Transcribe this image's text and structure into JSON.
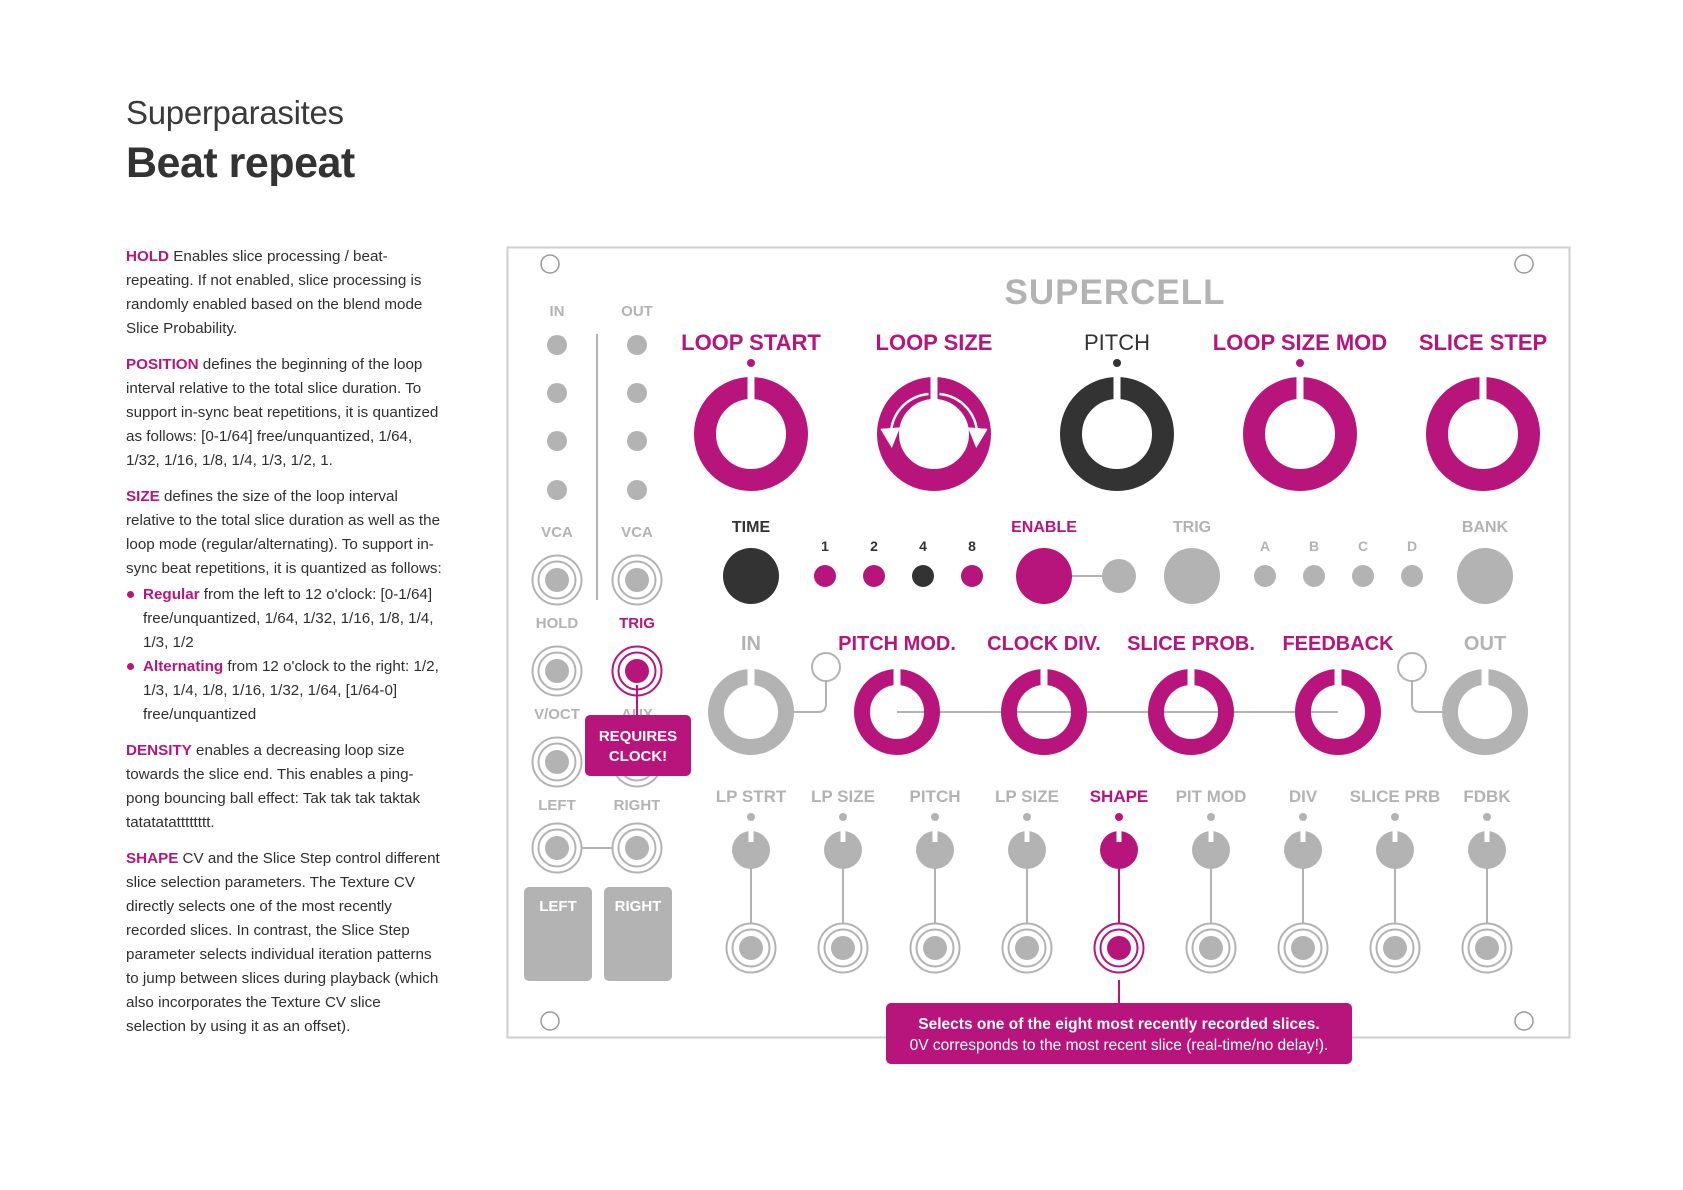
{
  "header": {
    "brand": "Superparasites",
    "title": "Beat repeat"
  },
  "description": {
    "hold": {
      "kw": "HOLD",
      "text": " Enables slice processing / beat-repeating. If not enabled, slice processing is randomly enabled based on the blend mode Slice Probability."
    },
    "position": {
      "kw": "POSITION",
      "text": " defines the beginning of the loop interval relative to the total slice duration. To support in-sync beat repetitions, it is quantized as follows: [0-1/64] free/unquantized, 1/64, 1/32, 1/16, 1/8, 1/4, 1/3, 1/2, 1."
    },
    "size": {
      "kw": "SIZE",
      "text": " defines the size of the loop interval relative to the total slice duration as well as the loop mode (regular/alternating). To support in-sync beat repetitions, it is quantized as follows:"
    },
    "regular": {
      "kw": "Regular",
      "text": " from the left to 12 o'clock: [0-1/64] free/unquantized, 1/64, 1/32, 1/16, 1/8, 1/4, 1/3, 1/2"
    },
    "alternating": {
      "kw": "Alternating",
      "text": " from 12 o'clock to the right: 1/2, 1/3, 1/4, 1/8, 1/16, 1/32, 1/64, [1/64-0] free/unquantized"
    },
    "density": {
      "kw": "DENSITY",
      "text": " enables a decreasing loop size towards the slice end. This enables a ping-pong bouncing ball effect: Tak tak tak taktak tatatatatttttttt."
    },
    "shape": {
      "kw": "SHAPE",
      "text": " CV and the Slice Step control different slice selection parameters. The Texture CV directly selects one of the most recently recorded slices. In contrast, the Slice Step parameter selects individual iteration patterns to jump between slices during playback (which also incorporates the Texture CV slice selection by using it as an offset)."
    }
  },
  "panel": {
    "name": "SUPERCELL",
    "io": {
      "in": "IN",
      "out": "OUT",
      "vca_in": "VCA",
      "vca_out": "VCA",
      "hold": "HOLD",
      "trig": "TRIG",
      "voct": "V/OCT",
      "aux": "AUX",
      "left": "LEFT",
      "right": "RIGHT",
      "left_out": "LEFT",
      "right_out": "RIGHT",
      "requires_clock": [
        "REQUIRES",
        "CLOCK!"
      ]
    },
    "big_knobs": {
      "loop_start": "LOOP START",
      "loop_size": "LOOP SIZE",
      "pitch": "PITCH",
      "loop_size_mod": "LOOP SIZE MOD",
      "slice_step": "SLICE STEP"
    },
    "middle": {
      "time": "TIME",
      "div": [
        "1",
        "2",
        "4",
        "8"
      ],
      "enable": "ENABLE",
      "trig": "TRIG",
      "bank_letters": [
        "A",
        "B",
        "C",
        "D"
      ],
      "bank": "BANK"
    },
    "mid_knobs": {
      "in": "IN",
      "pitch_mod": "PITCH MOD.",
      "clock_div": "CLOCK DIV.",
      "slice_prob": "SLICE PROB.",
      "feedback": "FEEDBACK",
      "out": "OUT"
    },
    "cv": [
      "LP STRT",
      "LP SIZE",
      "PITCH",
      "LP SIZE",
      "SHAPE",
      "PIT MOD",
      "DIV",
      "SLICE PRB",
      "FDBK"
    ],
    "callout": {
      "line1": "Selects one of the eight most recently recorded slices.",
      "line2": "0V corresponds to the most recent slice (real-time/no delay!)."
    }
  },
  "colors": {
    "accent": "#b8157c",
    "grey": "#b3b3b3",
    "dark": "#333333"
  }
}
